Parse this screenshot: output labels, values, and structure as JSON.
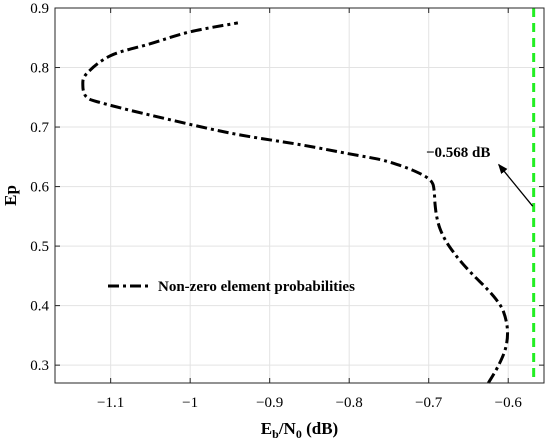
{
  "chart_data": {
    "type": "line",
    "xlabel_main": "E",
    "xlabel_sub1": "b",
    "xlabel_mid": "/N",
    "xlabel_sub2": "0",
    "xlabel_unit": " (dB)",
    "ylabel": "Ep",
    "xlim": [
      -1.17,
      -0.555
    ],
    "ylim": [
      0.27,
      0.9
    ],
    "xticks": [
      -1.1,
      -1,
      -0.9,
      -0.8,
      -0.7,
      -0.6
    ],
    "xtick_labels": [
      "−1.1",
      "−1",
      "−0.9",
      "−0.8",
      "−0.7",
      "−0.6"
    ],
    "yticks": [
      0.3,
      0.4,
      0.5,
      0.6,
      0.7,
      0.8,
      0.9
    ],
    "ytick_labels": [
      "0.3",
      "0.4",
      "0.5",
      "0.6",
      "0.7",
      "0.8",
      "0.9"
    ],
    "grid": true,
    "legend_position": "lower-left",
    "series": [
      {
        "name": "Non-zero element probabilities",
        "color": "#000000",
        "style": "dash-dot",
        "x": [
          -0.625,
          -0.612,
          -0.603,
          -0.601,
          -0.606,
          -0.615,
          -0.628,
          -0.643,
          -0.657,
          -0.669,
          -0.679,
          -0.686,
          -0.69,
          -0.692,
          -0.693,
          -0.695,
          -0.702,
          -0.716,
          -0.735,
          -0.76,
          -0.8,
          -0.86,
          -0.95,
          -1.05,
          -1.11,
          -1.13,
          -1.135,
          -1.13,
          -1.1,
          -1.05,
          -1.0,
          -0.94
        ],
        "y": [
          0.27,
          0.3,
          0.33,
          0.36,
          0.39,
          0.41,
          0.43,
          0.45,
          0.47,
          0.49,
          0.51,
          0.53,
          0.55,
          0.57,
          0.59,
          0.605,
          0.615,
          0.625,
          0.635,
          0.645,
          0.655,
          0.67,
          0.69,
          0.72,
          0.74,
          0.75,
          0.77,
          0.79,
          0.82,
          0.84,
          0.86,
          0.875
        ]
      }
    ],
    "threshold": {
      "x": -0.568,
      "color": "#22ee22",
      "style": "dashed"
    },
    "annotation": {
      "text": "−0.568 dB",
      "arrow_from": [
        -0.568,
        0.567
      ],
      "arrow_to": [
        -0.612,
        0.637
      ]
    }
  }
}
